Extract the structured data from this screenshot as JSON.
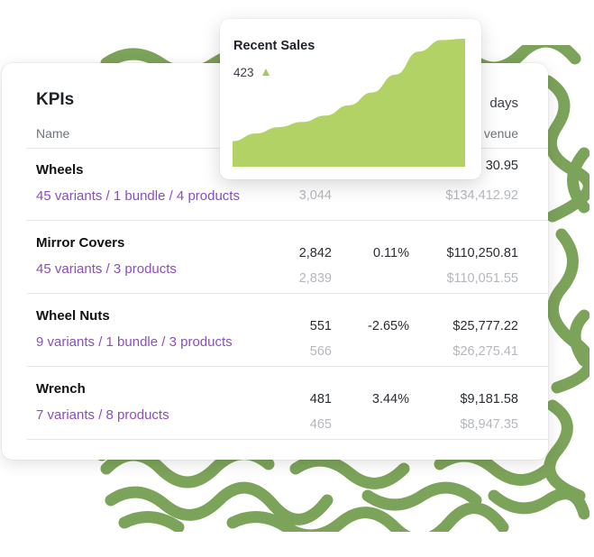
{
  "kpi": {
    "title": "KPIs",
    "period_label": "days",
    "columns": {
      "name": "Name",
      "revenue": "venue"
    },
    "rows": [
      {
        "name": "Wheels",
        "variants": "45 variants / 1 bundle / 4 products",
        "qty": "",
        "qty_prev": "3,044",
        "change": "",
        "revenue": "30.95",
        "revenue_prev": "$134,412.92"
      },
      {
        "name": "Mirror Covers",
        "variants": "45 variants / 3 products",
        "qty": "2,842",
        "qty_prev": "2,839",
        "change": "0.11%",
        "revenue": "$110,250.81",
        "revenue_prev": "$110,051.55"
      },
      {
        "name": "Wheel Nuts",
        "variants": "9 variants / 1 bundle / 3 products",
        "qty": "551",
        "qty_prev": "566",
        "change": "-2.65%",
        "revenue": "$25,777.22",
        "revenue_prev": "$26,275.41"
      },
      {
        "name": "Wrench",
        "variants": "7 variants / 8 products",
        "qty": "481",
        "qty_prev": "465",
        "change": "3.44%",
        "revenue": "$9,181.58",
        "revenue_prev": "$8,947.35"
      }
    ]
  },
  "recent_sales": {
    "title": "Recent Sales",
    "value": "423",
    "trend_icon": "up-triangle-icon",
    "fill_color": "#b2d266"
  },
  "chart_data": {
    "type": "area",
    "title": "Recent Sales",
    "x": [
      0,
      1,
      2,
      3,
      4,
      5,
      6,
      7,
      8,
      9,
      10
    ],
    "values": [
      20,
      26,
      31,
      35,
      40,
      48,
      58,
      72,
      90,
      99,
      100
    ],
    "ylim": [
      0,
      100
    ],
    "grid": false,
    "color": "#b2d266"
  },
  "decor": {
    "pattern_color": "#7ca35a"
  }
}
